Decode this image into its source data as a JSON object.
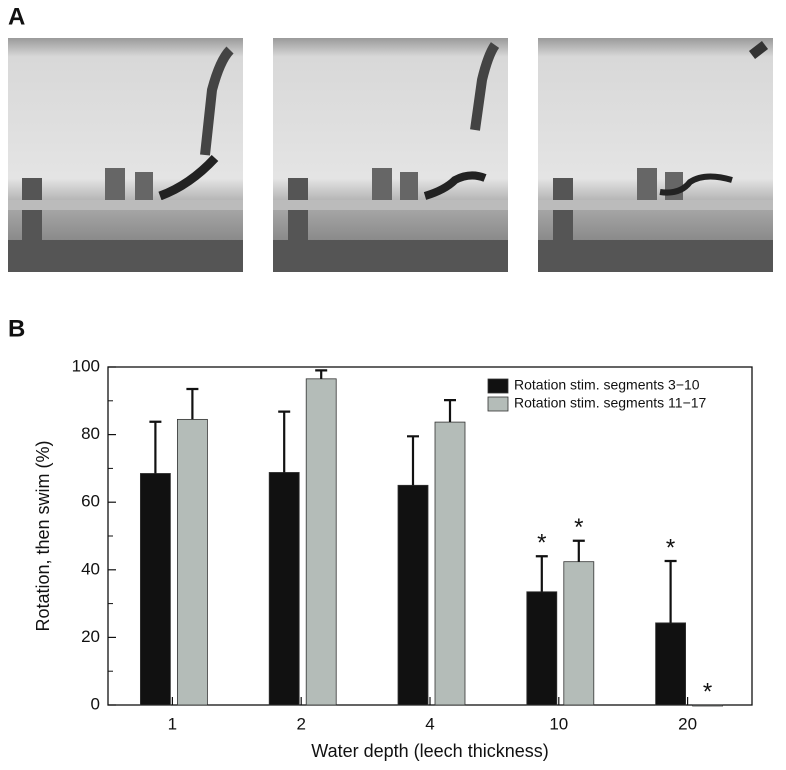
{
  "panel_labels": [
    "A",
    "B"
  ],
  "chart_data": {
    "type": "bar",
    "xlabel": "Water depth (leech thickness)",
    "ylabel": "Rotation, then swim (%)",
    "categories": [
      "1",
      "2",
      "4",
      "10",
      "20"
    ],
    "series": [
      {
        "name": "Rotation stim. segments 3−10",
        "color": "#111111",
        "values": [
          68.5,
          68.8,
          65,
          33.5,
          24.3
        ],
        "errors": [
          15.3,
          18,
          14.5,
          10.5,
          18.3
        ],
        "significance": [
          null,
          null,
          null,
          "*",
          "*"
        ]
      },
      {
        "name": "Rotation stim. segments 11−17",
        "color": "#b4bcb8",
        "values": [
          84.5,
          96.5,
          83.7,
          42.4,
          0
        ],
        "errors": [
          9,
          2.5,
          6.5,
          6.2,
          0
        ],
        "significance": [
          null,
          null,
          null,
          "*",
          "*"
        ]
      }
    ],
    "ylim": [
      0,
      100
    ],
    "yticks": [
      0,
      20,
      40,
      60,
      80,
      100
    ],
    "yminorticks": [
      10,
      30,
      50,
      70,
      90
    ],
    "legend": "upper-right"
  }
}
